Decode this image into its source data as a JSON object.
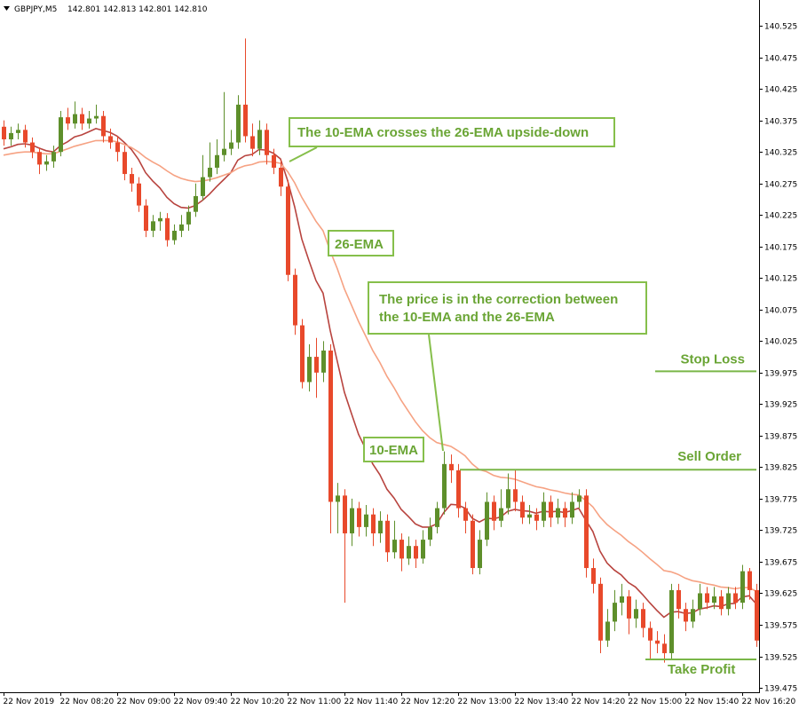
{
  "header": {
    "symbol": "GBPJPY,M5",
    "quote": "142.801 142.813 142.801 142.810"
  },
  "chart_data": {
    "type": "candlestick",
    "xlim": [
      -0.5,
      106.4
    ],
    "xticks": [
      {
        "value": 0,
        "label": "22 Nov 2019"
      },
      {
        "value": 8,
        "label": "22 Nov 08:20"
      },
      {
        "value": 16,
        "label": "22 Nov 09:00"
      },
      {
        "value": 24,
        "label": "22 Nov 09:40"
      },
      {
        "value": 32,
        "label": "22 Nov 10:20"
      },
      {
        "value": 40,
        "label": "22 Nov 11:00"
      },
      {
        "value": 48,
        "label": "22 Nov 11:40"
      },
      {
        "value": 56,
        "label": "22 Nov 12:20"
      },
      {
        "value": 64,
        "label": "22 Nov 13:00"
      },
      {
        "value": 72,
        "label": "22 Nov 13:40"
      },
      {
        "value": 80,
        "label": "22 Nov 14:20"
      },
      {
        "value": 88,
        "label": "22 Nov 15:00"
      },
      {
        "value": 96,
        "label": "22 Nov 15:40"
      },
      {
        "value": 104,
        "label": "22 Nov 16:20"
      }
    ],
    "ylim": [
      139.468,
      140.566
    ],
    "yticks": [
      139.475,
      139.525,
      139.575,
      139.625,
      139.675,
      139.725,
      139.775,
      139.825,
      139.875,
      139.925,
      139.975,
      140.025,
      140.075,
      140.125,
      140.175,
      140.225,
      140.275,
      140.325,
      140.375,
      140.425,
      140.475,
      140.525
    ],
    "up_color": "#5e8f2b",
    "down_color": "#e8492b",
    "candles": {
      "open": [
        140.365,
        140.345,
        140.355,
        140.36,
        140.34,
        140.325,
        140.305,
        140.31,
        140.325,
        140.38,
        140.37,
        140.385,
        140.37,
        140.378,
        140.382,
        140.35,
        140.34,
        140.325,
        140.29,
        140.275,
        140.24,
        140.2,
        140.215,
        140.22,
        140.185,
        140.2,
        140.21,
        140.23,
        140.255,
        140.285,
        140.3,
        140.32,
        140.33,
        140.34,
        140.4,
        140.35,
        140.33,
        140.36,
        140.32,
        140.3,
        140.27,
        140.13,
        140.05,
        139.96,
        140.0,
        139.975,
        140.01,
        139.77,
        139.78,
        139.72,
        139.76,
        139.73,
        139.75,
        139.72,
        139.74,
        139.69,
        139.71,
        139.68,
        139.7,
        139.68,
        139.71,
        139.73,
        139.76,
        139.83,
        139.82,
        139.76,
        139.74,
        139.665,
        139.71,
        139.77,
        139.74,
        139.76,
        139.79,
        139.77,
        139.745,
        139.75,
        139.74,
        139.77,
        139.745,
        139.76,
        139.745,
        139.77,
        139.78,
        139.665,
        139.64,
        139.55,
        139.58,
        139.61,
        139.62,
        139.585,
        139.6,
        139.57,
        139.55,
        139.545,
        139.53,
        139.63,
        139.6,
        139.58,
        139.6,
        139.625,
        139.61,
        139.62,
        139.6,
        139.625,
        139.61,
        139.66,
        139.63
      ],
      "high": [
        140.375,
        140.365,
        140.37,
        140.368,
        140.348,
        140.332,
        140.32,
        140.335,
        140.39,
        140.395,
        140.405,
        140.395,
        140.39,
        140.4,
        140.39,
        140.362,
        140.35,
        140.335,
        140.3,
        140.285,
        140.25,
        140.225,
        140.23,
        140.228,
        140.21,
        140.225,
        140.24,
        140.275,
        140.32,
        140.34,
        140.345,
        140.42,
        140.36,
        140.415,
        140.505,
        140.37,
        140.375,
        140.37,
        140.33,
        140.312,
        140.28,
        140.14,
        140.06,
        140.02,
        140.03,
        140.025,
        140.02,
        139.8,
        139.79,
        139.775,
        139.77,
        139.765,
        139.76,
        139.755,
        139.75,
        139.74,
        139.72,
        139.715,
        139.71,
        139.725,
        139.745,
        139.77,
        139.85,
        139.845,
        139.83,
        139.77,
        139.75,
        139.725,
        139.785,
        139.78,
        139.79,
        139.815,
        139.82,
        139.78,
        139.765,
        139.76,
        139.785,
        139.78,
        139.775,
        139.77,
        139.785,
        139.79,
        139.79,
        139.68,
        139.65,
        139.6,
        139.63,
        139.64,
        139.63,
        139.615,
        139.61,
        139.58,
        139.565,
        139.56,
        139.64,
        139.64,
        139.61,
        139.615,
        139.64,
        139.635,
        139.635,
        139.63,
        139.635,
        139.635,
        139.67,
        139.665,
        139.64
      ],
      "low": [
        140.335,
        140.335,
        140.345,
        140.332,
        140.315,
        140.29,
        140.295,
        140.3,
        140.318,
        140.36,
        140.362,
        140.36,
        140.362,
        140.37,
        140.34,
        140.33,
        140.31,
        140.28,
        140.262,
        140.23,
        140.19,
        140.19,
        140.2,
        140.175,
        140.178,
        140.19,
        140.2,
        140.222,
        140.248,
        140.278,
        140.29,
        140.31,
        140.32,
        140.33,
        140.34,
        140.318,
        140.32,
        140.305,
        140.29,
        140.255,
        140.12,
        140.035,
        139.95,
        139.945,
        139.935,
        139.96,
        139.72,
        139.72,
        139.61,
        139.7,
        139.715,
        139.715,
        139.7,
        139.705,
        139.675,
        139.68,
        139.66,
        139.67,
        139.665,
        139.672,
        139.7,
        139.72,
        139.75,
        139.8,
        139.745,
        139.72,
        139.655,
        139.655,
        139.7,
        139.725,
        139.73,
        139.75,
        139.755,
        139.735,
        139.735,
        139.725,
        139.73,
        139.73,
        139.735,
        139.73,
        139.735,
        139.76,
        139.65,
        139.625,
        139.53,
        139.54,
        139.565,
        139.59,
        139.56,
        139.57,
        139.555,
        139.52,
        139.53,
        139.515,
        139.52,
        139.585,
        139.565,
        139.57,
        139.59,
        139.6,
        139.6,
        139.59,
        139.59,
        139.6,
        139.6,
        139.615,
        139.54
      ],
      "close": [
        140.345,
        140.355,
        140.36,
        140.34,
        140.325,
        140.305,
        140.31,
        140.325,
        140.38,
        140.37,
        140.385,
        140.37,
        140.378,
        140.382,
        140.35,
        140.34,
        140.325,
        140.29,
        140.275,
        140.24,
        140.2,
        140.215,
        140.22,
        140.185,
        140.2,
        140.21,
        140.23,
        140.255,
        140.285,
        140.3,
        140.32,
        140.33,
        140.34,
        140.4,
        140.35,
        140.33,
        140.36,
        140.32,
        140.3,
        140.27,
        140.13,
        140.05,
        139.96,
        140.0,
        139.975,
        140.01,
        139.77,
        139.78,
        139.72,
        139.76,
        139.73,
        139.75,
        139.72,
        139.74,
        139.69,
        139.71,
        139.68,
        139.7,
        139.68,
        139.71,
        139.73,
        139.76,
        139.83,
        139.82,
        139.76,
        139.74,
        139.665,
        139.71,
        139.77,
        139.74,
        139.76,
        139.79,
        139.77,
        139.745,
        139.75,
        139.74,
        139.77,
        139.745,
        139.76,
        139.745,
        139.77,
        139.78,
        139.665,
        139.64,
        139.55,
        139.58,
        139.61,
        139.62,
        139.585,
        139.6,
        139.57,
        139.55,
        139.545,
        139.53,
        139.63,
        139.6,
        139.58,
        139.6,
        139.625,
        139.61,
        139.62,
        139.6,
        139.625,
        139.61,
        139.66,
        139.63,
        139.55
      ]
    },
    "series": [
      {
        "name": "10-EMA",
        "color": "#b8443f",
        "values": [
          140.33,
          140.333,
          140.337,
          140.338,
          140.336,
          140.331,
          140.327,
          140.325,
          140.335,
          140.341,
          140.349,
          140.352,
          140.357,
          140.362,
          140.359,
          140.356,
          140.35,
          140.34,
          140.329,
          140.313,
          140.292,
          140.279,
          140.268,
          140.253,
          140.243,
          140.237,
          140.236,
          140.24,
          140.248,
          140.258,
          140.27,
          140.281,
          140.292,
          140.312,
          140.319,
          140.321,
          140.329,
          140.328,
          140.323,
          140.314,
          140.28,
          140.238,
          140.187,
          140.153,
          140.121,
          140.101,
          140.042,
          139.993,
          139.944,
          139.91,
          139.877,
          139.854,
          139.83,
          139.813,
          139.79,
          139.776,
          139.758,
          139.747,
          139.735,
          139.73,
          139.73,
          139.735,
          139.753,
          139.766,
          139.765,
          139.76,
          139.744,
          139.738,
          139.744,
          139.743,
          139.746,
          139.755,
          139.758,
          139.756,
          139.755,
          139.752,
          139.755,
          139.754,
          139.755,
          139.753,
          139.756,
          139.76,
          139.741,
          139.723,
          139.692,
          139.673,
          139.662,
          139.654,
          139.642,
          139.635,
          139.623,
          139.61,
          139.598,
          139.587,
          139.595,
          139.596,
          139.593,
          139.594,
          139.6,
          139.602,
          139.605,
          139.604,
          139.608,
          139.609,
          139.619,
          139.621,
          139.608
        ]
      },
      {
        "name": "26-EMA",
        "color": "#f6a283",
        "values": [
          140.32,
          140.322,
          140.324,
          140.325,
          140.325,
          140.323,
          140.322,
          140.322,
          140.326,
          140.33,
          140.334,
          140.337,
          140.34,
          140.343,
          140.343,
          140.343,
          140.341,
          140.337,
          140.332,
          140.325,
          140.316,
          140.309,
          140.303,
          140.295,
          140.288,
          140.283,
          140.28,
          140.278,
          140.279,
          140.281,
          140.284,
          140.288,
          140.292,
          140.299,
          140.303,
          140.305,
          140.309,
          140.31,
          140.309,
          140.307,
          140.294,
          140.276,
          140.253,
          140.234,
          140.215,
          140.2,
          140.168,
          140.14,
          140.108,
          140.082,
          140.056,
          140.033,
          140.01,
          139.991,
          139.969,
          139.951,
          139.931,
          139.914,
          139.897,
          139.883,
          139.872,
          139.864,
          139.861,
          139.858,
          139.851,
          139.843,
          139.83,
          139.821,
          139.818,
          139.812,
          139.809,
          139.808,
          139.806,
          139.802,
          139.798,
          139.794,
          139.792,
          139.789,
          139.787,
          139.784,
          139.782,
          139.781,
          139.772,
          139.762,
          139.746,
          139.734,
          139.725,
          139.717,
          139.707,
          139.699,
          139.69,
          139.68,
          139.671,
          139.661,
          139.659,
          139.655,
          139.649,
          139.645,
          139.643,
          139.64,
          139.638,
          139.635,
          139.634,
          139.632,
          139.634,
          139.634,
          139.628
        ]
      }
    ],
    "levels": [
      {
        "name": "Stop Loss",
        "value": 139.977
      },
      {
        "name": "Sell Order",
        "value": 139.821
      },
      {
        "name": "Take Profit",
        "value": 139.52
      }
    ],
    "annotations": [
      {
        "lines": [
          "The 10-EMA crosses the 26-EMA upside-down"
        ]
      },
      {
        "lines": [
          "The price is in the correction between",
          "the 10-EMA and the 26-EMA"
        ]
      }
    ]
  }
}
